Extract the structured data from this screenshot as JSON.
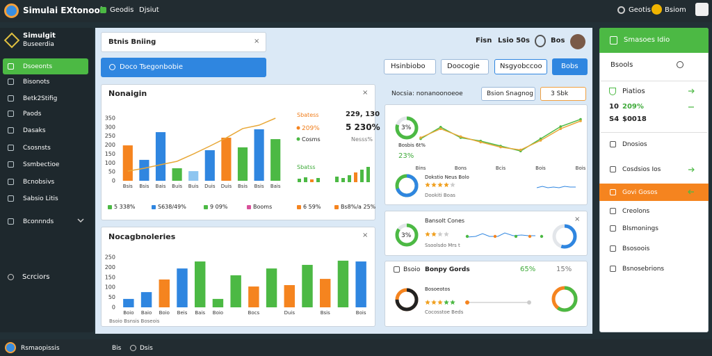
{
  "topbar": {
    "app_name": "Simulai EXtonooi",
    "nav": [
      "Geodis",
      "Djsiut"
    ],
    "status": "Geotis",
    "account": "Bsiom"
  },
  "sidebar": {
    "title": "Simulgit",
    "subtitle": "Buseerdia",
    "items": [
      "Dsoeonts",
      "Bisonots",
      "Betk2Stifig",
      "Paods",
      "Dasaks",
      "Csosnsts",
      "Ssmbectioe",
      "Bcnobsivs",
      "Sabsio Litis",
      "Bconnnds"
    ],
    "footer": "Scrciors"
  },
  "search": {
    "placeholder": "Btnis Bniing"
  },
  "banner": "Doco Tsegonbobie",
  "header_right": [
    "Fisn",
    "Lsio 50s",
    "Bos"
  ],
  "toolbar": [
    "Hsinbiobo",
    "Doocogie",
    "Nsgyobccoo",
    "Bobs"
  ],
  "panel1": {
    "side": [
      "Sbatess",
      "229, 130",
      "209%",
      "5 230%",
      "Cosms",
      "Nesss%",
      "Sbatss"
    ],
    "stats": [
      "5 338%",
      "S638/49%",
      "9 09%",
      "Booms",
      "6 59%",
      "Bs8%/a 25%"
    ]
  },
  "panel2": {
    "footer": "Bsoio Bsnsis Boseois"
  },
  "panel3": {
    "tags": [
      "Bsion Snagnog",
      "3 Sbk"
    ],
    "texts": [
      "3%",
      "Bosbis 6t%",
      "23%",
      "Dokstio Neus Bolo",
      "Dookiti Boas"
    ]
  },
  "panel4": {
    "texts": [
      "3%",
      "Bansolt Cones",
      "Ssoolsdo Mrs t"
    ]
  },
  "panel5": {
    "texts": [
      "Bsoio",
      "Bonpy Gords",
      "65%",
      "15%",
      "Bosoeotos",
      "Cocosstoe Beds"
    ]
  },
  "right_panel": {
    "header": "Smasoes Idio",
    "search": "Bsools",
    "title": "Piatios",
    "stat1": [
      "10",
      "209%"
    ],
    "stat2": [
      "S4",
      "$0018"
    ],
    "items": [
      "Dnosios",
      "Cosdsios Ios"
    ],
    "active": "Govi Gosos",
    "links": [
      "Creolons",
      "Blsmonings",
      "Bsosoois",
      "Bsnosebrions"
    ]
  },
  "footer": [
    "Rsmaopissis",
    "Bis",
    "Dsis"
  ],
  "chart_data": [
    {
      "type": "bar",
      "title": "Nonaigin",
      "categories": [
        "Bsis",
        "Bsis",
        "Bais",
        "Buis",
        "Buis",
        "Duis",
        "Duis",
        "Bsis",
        "Bsis",
        "Bais"
      ],
      "values": [
        198,
        117,
        272,
        70,
        54,
        171,
        241,
        187,
        288,
        233
      ],
      "colors": [
        "#f5841f",
        "#2f86e0",
        "#2f86e0",
        "#4cb944",
        "#8ec5f0",
        "#2f86e0",
        "#f5841f",
        "#4cb944",
        "#2f86e0",
        "#4cb944"
      ],
      "ylim": [
        0,
        350
      ],
      "yticks": [
        0,
        50,
        100,
        150,
        200,
        250,
        300,
        350
      ],
      "line": {
        "color": "#e8a838",
        "values": [
          54,
          70,
          90,
          109,
          150,
          194,
          240,
          292,
          311,
          350
        ]
      }
    },
    {
      "type": "bar",
      "title": "Nocagbnoleries",
      "categories": [
        "Boio",
        "Baio",
        "Boio",
        "Beis",
        "Bais",
        "Boio",
        null,
        "Bocs",
        null,
        "Duis",
        null,
        "Bsis",
        null,
        "Bois"
      ],
      "values": [
        42,
        76,
        139,
        194,
        229,
        42,
        160,
        104,
        194,
        111,
        212,
        142,
        233,
        229
      ],
      "colors": [
        "#2f86e0",
        "#2f86e0",
        "#f5841f",
        "#2f86e0",
        "#4cb944",
        "#4cb944",
        "#4cb944",
        "#f5841f",
        "#4cb944",
        "#f5841f",
        "#4cb944",
        "#f5841f",
        "#4cb944",
        "#2f86e0"
      ],
      "ylim": [
        0,
        250
      ],
      "yticks": [
        0,
        50,
        100,
        150,
        200,
        250
      ]
    },
    {
      "type": "line",
      "title": "Nocsia: nonanoonoeoe",
      "categories": [
        "Bins",
        null,
        "Bons",
        null,
        "Bcis",
        null,
        "Bois",
        null,
        "Bois"
      ],
      "ylim": [
        0,
        100
      ],
      "series": [
        {
          "color": "#4cb944",
          "values": [
            48,
            69,
            50,
            44,
            35,
            26,
            48,
            70,
            83
          ]
        },
        {
          "color": "#e8a838",
          "values": [
            50,
            66,
            52,
            42,
            33,
            28,
            45,
            66,
            80
          ]
        }
      ]
    }
  ]
}
